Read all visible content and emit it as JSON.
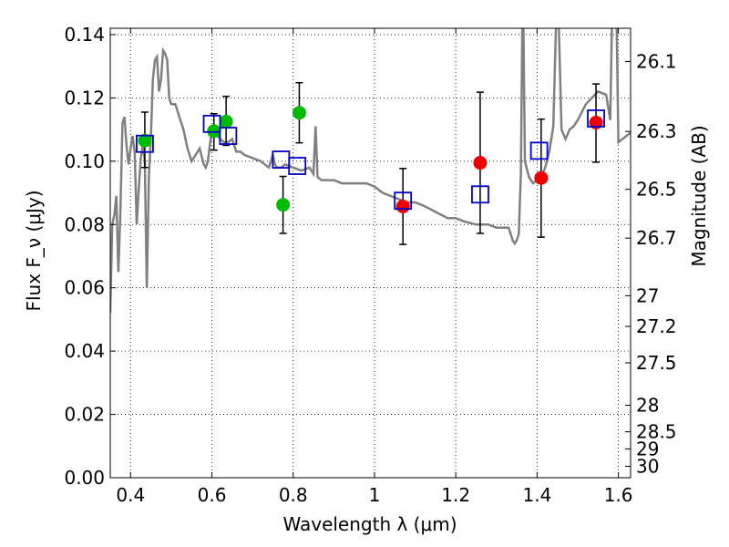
{
  "chart_data": {
    "type": "scatter",
    "xlabel": "Wavelength λ (μm)",
    "ylabel": "Flux F_ν (μJy)",
    "ylabel_right": "Magnitude (AB)",
    "xlim": [
      0.35,
      1.63
    ],
    "ylim": [
      0.0,
      0.142
    ],
    "x_ticks": [
      0.4,
      0.6,
      0.8,
      1.0,
      1.2,
      1.4,
      1.6
    ],
    "x_tick_labels": [
      "0.4",
      "0.6",
      "0.8",
      "1",
      "1.2",
      "1.4",
      "1.6"
    ],
    "y_ticks": [
      0.0,
      0.02,
      0.04,
      0.06,
      0.08,
      0.1,
      0.12,
      0.14
    ],
    "y_tick_labels": [
      "0.00",
      "0.02",
      "0.04",
      "0.06",
      "0.08",
      "0.10",
      "0.12",
      "0.14"
    ],
    "right_ticks": [
      {
        "label": "26.1",
        "flux": 0.1315
      },
      {
        "label": "26.3",
        "flux": 0.1094
      },
      {
        "label": "26.5",
        "flux": 0.0911
      },
      {
        "label": "26.7",
        "flux": 0.0757
      },
      {
        "label": "27",
        "flux": 0.0575
      },
      {
        "label": "27.2",
        "flux": 0.0478
      },
      {
        "label": "27.5",
        "flux": 0.0363
      },
      {
        "label": "28",
        "flux": 0.0229
      },
      {
        "label": "28.5",
        "flux": 0.0145
      },
      {
        "label": "29",
        "flux": 0.0091
      },
      {
        "label": "30",
        "flux": 0.0036
      }
    ],
    "grid": true,
    "colors": {
      "model": "#808080",
      "green": "#00bb00",
      "red": "#ee0000",
      "model_box": "#0000cc",
      "errorbar": "#000000"
    },
    "model_spectrum": {
      "x": [
        0.35,
        0.355,
        0.36,
        0.365,
        0.37,
        0.375,
        0.38,
        0.385,
        0.39,
        0.395,
        0.4,
        0.405,
        0.41,
        0.415,
        0.42,
        0.425,
        0.43,
        0.435,
        0.44,
        0.445,
        0.45,
        0.455,
        0.46,
        0.465,
        0.47,
        0.475,
        0.48,
        0.485,
        0.49,
        0.495,
        0.5,
        0.51,
        0.52,
        0.53,
        0.54,
        0.55,
        0.56,
        0.57,
        0.58,
        0.585,
        0.59,
        0.6,
        0.61,
        0.62,
        0.63,
        0.64,
        0.65,
        0.66,
        0.67,
        0.68,
        0.7,
        0.72,
        0.74,
        0.75,
        0.755,
        0.76,
        0.77,
        0.78,
        0.8,
        0.82,
        0.84,
        0.85,
        0.855,
        0.86,
        0.87,
        0.88,
        0.9,
        0.92,
        0.94,
        0.96,
        0.98,
        1.0,
        1.02,
        1.04,
        1.06,
        1.08,
        1.1,
        1.12,
        1.15,
        1.18,
        1.2,
        1.22,
        1.25,
        1.28,
        1.3,
        1.33,
        1.34,
        1.345,
        1.35,
        1.355,
        1.36,
        1.365,
        1.37,
        1.38,
        1.39,
        1.4,
        1.41,
        1.42,
        1.43,
        1.44,
        1.45,
        1.46,
        1.47,
        1.48,
        1.49,
        1.5,
        1.52,
        1.55,
        1.57,
        1.58,
        1.585,
        1.59,
        1.595,
        1.6,
        1.61,
        1.62,
        1.63
      ],
      "y": [
        0.052,
        0.08,
        0.083,
        0.089,
        0.065,
        0.085,
        0.112,
        0.114,
        0.105,
        0.099,
        0.104,
        0.108,
        0.103,
        0.08,
        0.091,
        0.101,
        0.105,
        0.1,
        0.06,
        0.095,
        0.108,
        0.126,
        0.132,
        0.133,
        0.122,
        0.126,
        0.135,
        0.134,
        0.132,
        0.12,
        0.118,
        0.118,
        0.114,
        0.11,
        0.104,
        0.1,
        0.102,
        0.104,
        0.099,
        0.098,
        0.1,
        0.11,
        0.109,
        0.107,
        0.106,
        0.106,
        0.107,
        0.103,
        0.103,
        0.102,
        0.101,
        0.1,
        0.098,
        0.102,
        0.099,
        0.098,
        0.098,
        0.099,
        0.098,
        0.097,
        0.098,
        0.096,
        0.111,
        0.095,
        0.094,
        0.094,
        0.094,
        0.093,
        0.093,
        0.093,
        0.093,
        0.092,
        0.09,
        0.089,
        0.088,
        0.087,
        0.087,
        0.086,
        0.084,
        0.082,
        0.082,
        0.081,
        0.08,
        0.08,
        0.079,
        0.079,
        0.075,
        0.074,
        0.075,
        0.077,
        0.096,
        0.16,
        0.1,
        0.095,
        0.093,
        0.094,
        0.095,
        0.098,
        0.103,
        0.111,
        0.16,
        0.11,
        0.107,
        0.11,
        0.111,
        0.113,
        0.118,
        0.122,
        0.121,
        0.113,
        0.15,
        0.16,
        0.15,
        0.106,
        0.107,
        0.108,
        0.109
      ]
    },
    "series": [
      {
        "marker": "circle",
        "color": "green",
        "x": [
          0.435,
          0.605,
          0.635,
          0.775,
          0.815
        ],
        "y": [
          0.1065,
          0.1095,
          0.1125,
          0.0862,
          0.1153
        ],
        "err_low": [
          0.1065,
          0.1095,
          0.1125,
          0.0772,
          0.1058
        ],
        "err_high": [
          0.1065,
          0.1095,
          0.1125,
          0.0952,
          0.1248
        ]
      },
      {
        "marker": "circle",
        "color": "red",
        "x": [
          1.07,
          1.26,
          1.41,
          1.545
        ],
        "y": [
          0.0857,
          0.0995,
          0.0947,
          0.1122
        ],
        "err_low": [
          0.0737,
          0.0772,
          0.076,
          0.0997
        ],
        "err_high": [
          0.0977,
          0.1218,
          0.1133,
          0.1244
        ]
      },
      {
        "marker": "open-square",
        "color": "model_box",
        "x": [
          0.435,
          0.6,
          0.64,
          0.77,
          0.81,
          1.07,
          1.26,
          1.405,
          1.545
        ],
        "y": [
          0.1055,
          0.1118,
          0.108,
          0.1005,
          0.0985,
          0.0875,
          0.0895,
          0.1033,
          0.1135
        ]
      }
    ],
    "errorbars_on_points": [
      {
        "x": 0.435,
        "y_low": 0.098,
        "y_high": 0.1155
      },
      {
        "x": 0.605,
        "y_low": 0.1035,
        "y_high": 0.115
      },
      {
        "x": 0.635,
        "y_low": 0.105,
        "y_high": 0.1205
      }
    ]
  }
}
